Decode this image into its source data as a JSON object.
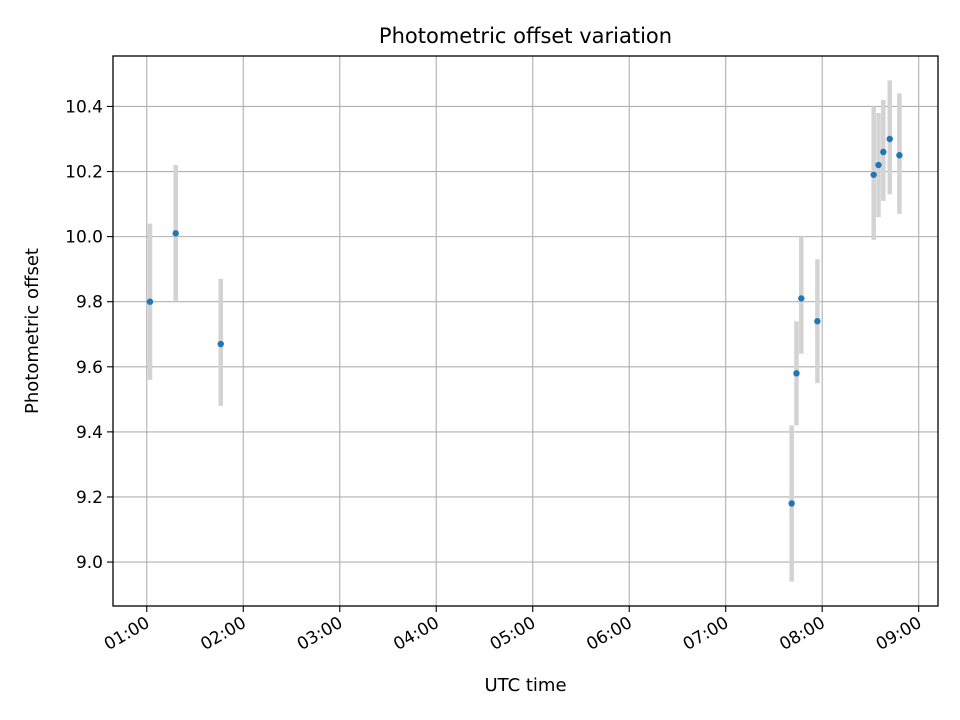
{
  "chart_data": {
    "type": "scatter",
    "title": "Photometric offset variation",
    "xlabel": "UTC time",
    "ylabel": "Photometric offset",
    "x_ticks": [
      "01:00",
      "02:00",
      "03:00",
      "04:00",
      "05:00",
      "06:00",
      "07:00",
      "08:00",
      "09:00"
    ],
    "y_ticks": [
      "9.0",
      "9.2",
      "9.4",
      "9.6",
      "9.8",
      "10.0",
      "10.2",
      "10.4"
    ],
    "xlim": [
      "00:39",
      "09:12"
    ],
    "ylim": [
      8.865,
      10.555
    ],
    "grid": true,
    "legend": "none",
    "colors": {
      "point": "#1f77b4",
      "errorbar": "#d3d3d3",
      "grid": "#b0b0b0"
    },
    "series": [
      {
        "points": [
          {
            "x": "01:02",
            "y": 9.8,
            "yerr_low": 9.56,
            "yerr_high": 10.04
          },
          {
            "x": "01:18",
            "y": 10.01,
            "yerr_low": 9.8,
            "yerr_high": 10.22
          },
          {
            "x": "01:46",
            "y": 9.67,
            "yerr_low": 9.48,
            "yerr_high": 9.87
          },
          {
            "x": "07:41",
            "y": 9.18,
            "yerr_low": 8.94,
            "yerr_high": 9.42
          },
          {
            "x": "07:44",
            "y": 9.58,
            "yerr_low": 9.42,
            "yerr_high": 9.74
          },
          {
            "x": "07:47",
            "y": 9.81,
            "yerr_low": 9.64,
            "yerr_high": 10.0
          },
          {
            "x": "07:57",
            "y": 9.74,
            "yerr_low": 9.55,
            "yerr_high": 9.93
          },
          {
            "x": "08:32",
            "y": 10.19,
            "yerr_low": 9.99,
            "yerr_high": 10.4
          },
          {
            "x": "08:35",
            "y": 10.22,
            "yerr_low": 10.06,
            "yerr_high": 10.38
          },
          {
            "x": "08:38",
            "y": 10.26,
            "yerr_low": 10.11,
            "yerr_high": 10.42
          },
          {
            "x": "08:42",
            "y": 10.3,
            "yerr_low": 10.13,
            "yerr_high": 10.48
          },
          {
            "x": "08:48",
            "y": 10.25,
            "yerr_low": 10.07,
            "yerr_high": 10.44
          }
        ]
      }
    ]
  }
}
